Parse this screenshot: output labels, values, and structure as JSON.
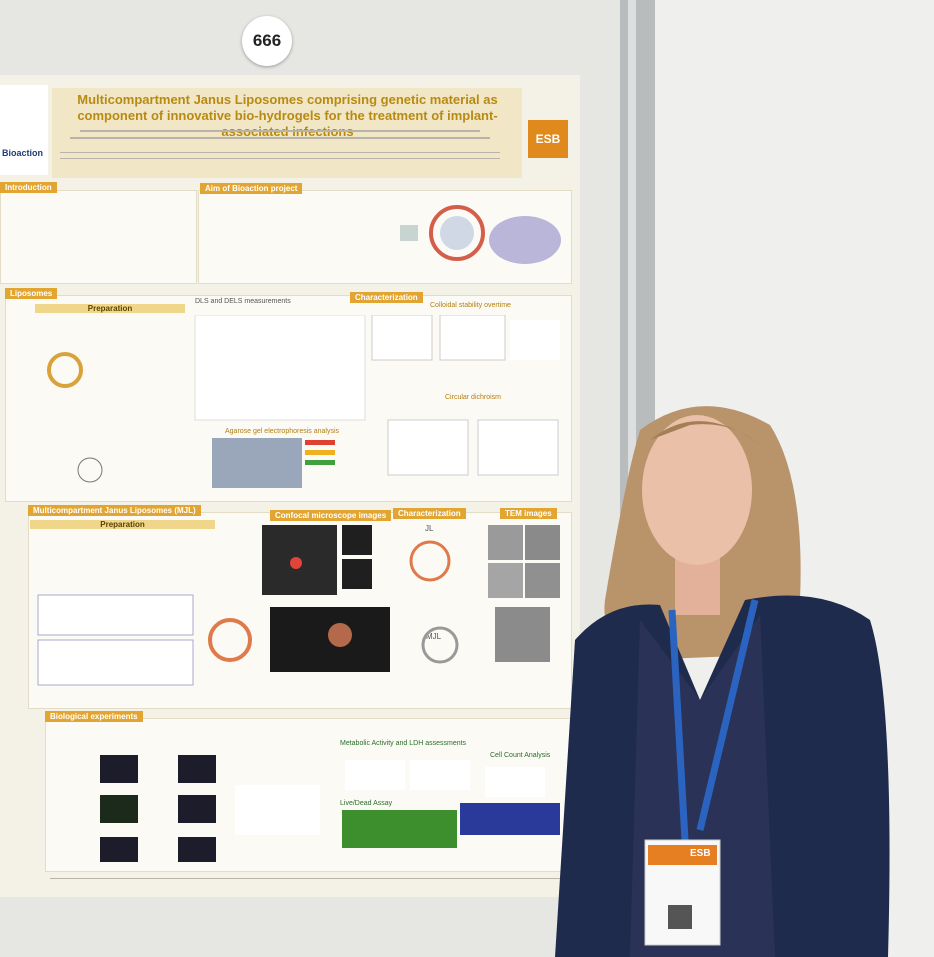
{
  "badge": "666",
  "poster": {
    "title": "Multicompartment Janus Liposomes comprising genetic material as component of innovative bio-hydrogels for the treatment of implant-associated infections",
    "logo_left": "Bioaction",
    "logo_right": "ESB",
    "sections": [
      "Introduction",
      "Aim of Bioaction project",
      "Liposomes",
      "Preparation",
      "Characterization",
      "DLS and DELS measurements",
      "Colloidal stability overtime",
      "Circular dichroism",
      "Agarose gel electrophoresis analysis",
      "Multicompartment Janus Liposomes (MJL)",
      "Preparation",
      "Confocal microscope images",
      "Characterization",
      "TEM images",
      "JL",
      "MJL",
      "Biological experiments",
      "Metabolic Activity and LDH assessments",
      "Cell Count Analysis",
      "Live/Dead Assay"
    ]
  },
  "lanyard": "ESB"
}
